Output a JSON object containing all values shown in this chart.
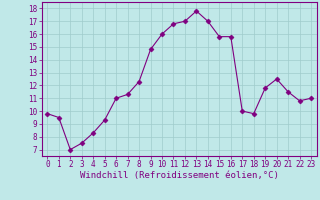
{
  "x": [
    0,
    1,
    2,
    3,
    4,
    5,
    6,
    7,
    8,
    9,
    10,
    11,
    12,
    13,
    14,
    15,
    16,
    17,
    18,
    19,
    20,
    21,
    22,
    23
  ],
  "y": [
    9.8,
    9.5,
    7.0,
    7.5,
    8.3,
    9.3,
    11.0,
    11.3,
    12.3,
    14.8,
    16.0,
    16.8,
    17.0,
    17.8,
    17.0,
    15.8,
    15.8,
    10.0,
    9.8,
    11.8,
    12.5,
    11.5,
    10.8,
    11.0
  ],
  "line_color": "#800080",
  "marker": "D",
  "marker_size": 2.5,
  "bg_color": "#c0e8e8",
  "grid_color": "#a0cccc",
  "xlabel": "Windchill (Refroidissement éolien,°C)",
  "ylabel": "",
  "title": "",
  "xlim": [
    -0.5,
    23.5
  ],
  "ylim": [
    6.5,
    18.5
  ],
  "yticks": [
    7,
    8,
    9,
    10,
    11,
    12,
    13,
    14,
    15,
    16,
    17,
    18
  ],
  "xticks": [
    0,
    1,
    2,
    3,
    4,
    5,
    6,
    7,
    8,
    9,
    10,
    11,
    12,
    13,
    14,
    15,
    16,
    17,
    18,
    19,
    20,
    21,
    22,
    23
  ],
  "tick_fontsize": 5.5,
  "xlabel_fontsize": 6.5,
  "tick_color": "#800080",
  "axis_color": "#800080"
}
